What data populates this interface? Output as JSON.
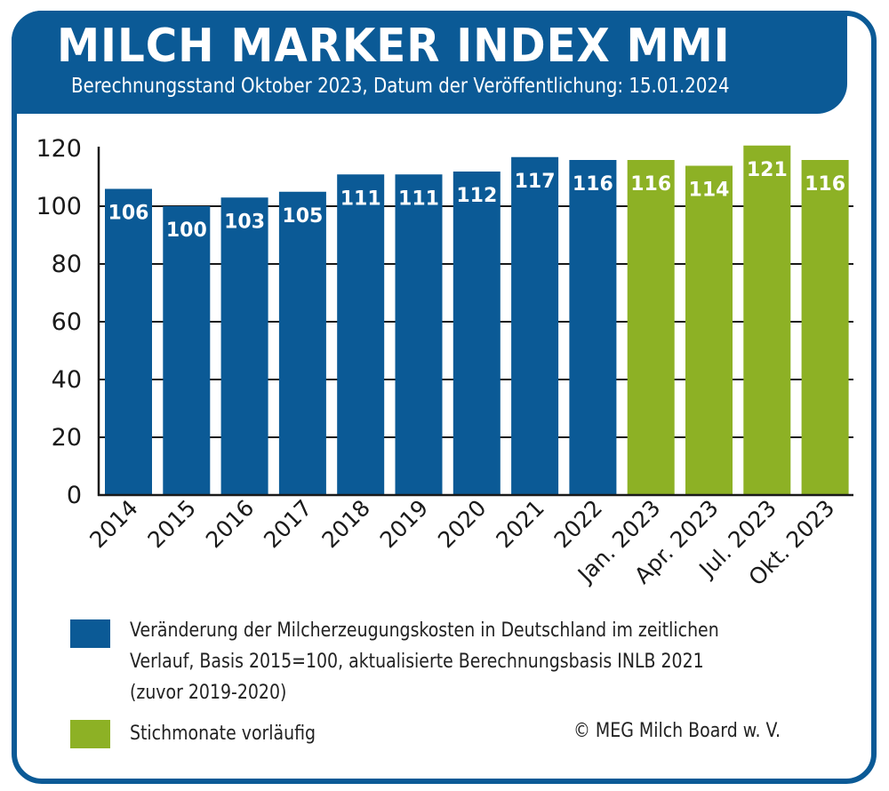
{
  "header": {
    "title": "MILCH MARKER INDEX MMI",
    "subtitle": "Berechnungsstand Oktober 2023, Datum der Veröffentlichung: 15.01.2024"
  },
  "colors": {
    "brand_blue": "#0b5a96",
    "provisional_green": "#8db125",
    "axis": "#1a1a1a"
  },
  "chart_data": {
    "type": "bar",
    "title": "MILCH MARKER INDEX MMI",
    "subtitle": "Berechnungsstand Oktober 2023, Datum der Veröffentlichung: 15.01.2024",
    "xlabel": "",
    "ylabel": "",
    "ylim": [
      0,
      120
    ],
    "yticks": [
      0,
      20,
      40,
      60,
      80,
      100,
      120
    ],
    "grid": "horizontal",
    "categories": [
      "2014",
      "2015",
      "2016",
      "2017",
      "2018",
      "2019",
      "2020",
      "2021",
      "2022",
      "Jan. 2023",
      "Apr. 2023",
      "Jul. 2023",
      "Okt. 2023"
    ],
    "values": [
      106,
      100,
      103,
      105,
      111,
      111,
      112,
      117,
      116,
      116,
      114,
      121,
      116
    ],
    "series_type": [
      "final",
      "final",
      "final",
      "final",
      "final",
      "final",
      "final",
      "final",
      "final",
      "provisional",
      "provisional",
      "provisional",
      "provisional"
    ],
    "data_labels": [
      "106",
      "100",
      "103",
      "105",
      "111",
      "111",
      "112",
      "117",
      "116",
      "116",
      "114",
      "121",
      "116"
    ],
    "legend": [
      {
        "key": "final",
        "color": "#0b5a96",
        "label": "Veränderung der Milcherzeugungskosten in Deutschland im zeitlichen Verlauf, Basis 2015=100, aktualisierte Berechnungsbasis INLB 2021 (zuvor 2019-2020)"
      },
      {
        "key": "provisional",
        "color": "#8db125",
        "label": "Stichmonate vorläufig"
      }
    ],
    "legend_position": "bottom"
  },
  "legend": {
    "blue_lines": [
      "Veränderung der Milcherzeugungskosten in Deutschland im zeitlichen",
      "Verlauf, Basis 2015=100, aktualisierte Berechnungsbasis INLB 2021",
      "(zuvor 2019-2020)"
    ],
    "green_label": "Stichmonate vorläufig"
  },
  "footer": {
    "copyright": "© MEG Milch Board w. V."
  }
}
